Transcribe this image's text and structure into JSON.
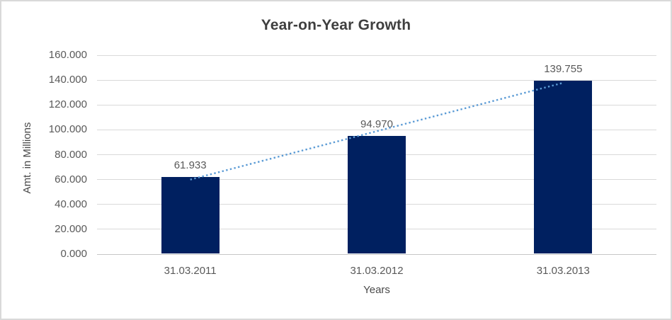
{
  "chart_data": {
    "type": "bar",
    "title": "Year-on-Year Growth",
    "xlabel": "Years",
    "ylabel": "Amt. in Millions",
    "categories": [
      "31.03.2011",
      "31.03.2012",
      "31.03.2013"
    ],
    "values": [
      61933,
      94970,
      139755
    ],
    "value_labels": [
      "61.933",
      "94.970",
      "139.755"
    ],
    "ylim": [
      0,
      160000
    ],
    "ytick_step": 20000,
    "ytick_labels": [
      "0.000",
      "20.000",
      "40.000",
      "60.000",
      "80.000",
      "100.000",
      "120.000",
      "140.000",
      "160.000"
    ],
    "grid": true,
    "legend": "none",
    "trendline": {
      "fit": "linear",
      "style": "dotted"
    },
    "colors": {
      "bar": "#002060",
      "trendline": "#5b9bd5",
      "gridline": "#d9d9d9",
      "axis_line": "#c6c6c6",
      "tick_text": "#595959",
      "title_text": "#3f3f3f",
      "frame_border": "#d9d9d9"
    }
  }
}
